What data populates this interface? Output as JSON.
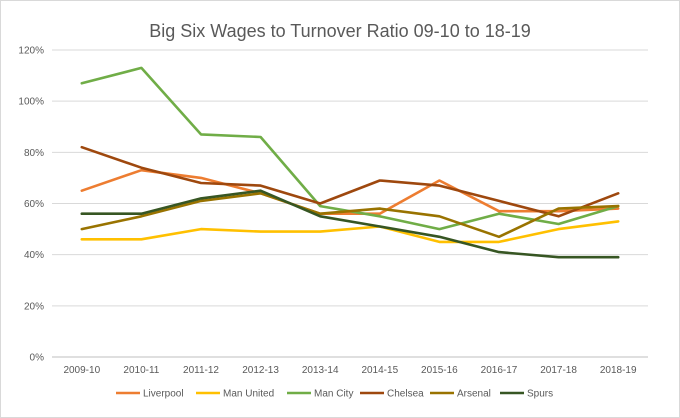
{
  "chart_data": {
    "type": "line",
    "title": "Big Six Wages to Turnover Ratio 09-10 to 18-19",
    "xlabel": "",
    "ylabel": "",
    "categories": [
      "2009-10",
      "2010-11",
      "2011-12",
      "2012-13",
      "2013-14",
      "2014-15",
      "2015-16",
      "2016-17",
      "2017-18",
      "2018-19"
    ],
    "y_ticks": [
      "0%",
      "20%",
      "40%",
      "60%",
      "80%",
      "100%",
      "120%"
    ],
    "ylim": [
      0,
      120
    ],
    "grid": true,
    "legend_position": "bottom",
    "series": [
      {
        "name": "Liverpool",
        "color": "#ED7D31",
        "values": [
          65,
          73,
          70,
          64,
          56,
          56,
          69,
          57,
          57,
          58
        ]
      },
      {
        "name": "Man United",
        "color": "#FFC000",
        "values": [
          46,
          46,
          50,
          49,
          49,
          51,
          45,
          45,
          50,
          53
        ]
      },
      {
        "name": "Man City",
        "color": "#70AD47",
        "values": [
          107,
          113,
          87,
          86,
          59,
          55,
          50,
          56,
          52,
          59
        ]
      },
      {
        "name": "Chelsea",
        "color": "#9E480E",
        "values": [
          82,
          74,
          68,
          67,
          60,
          69,
          67,
          61,
          55,
          64
        ]
      },
      {
        "name": "Arsenal",
        "color": "#997300",
        "values": [
          50,
          55,
          61,
          64,
          56,
          58,
          55,
          47,
          58,
          59
        ]
      },
      {
        "name": "Spurs",
        "color": "#375623",
        "values": [
          56,
          56,
          62,
          65,
          55,
          51,
          47,
          41,
          39,
          39
        ]
      }
    ]
  }
}
